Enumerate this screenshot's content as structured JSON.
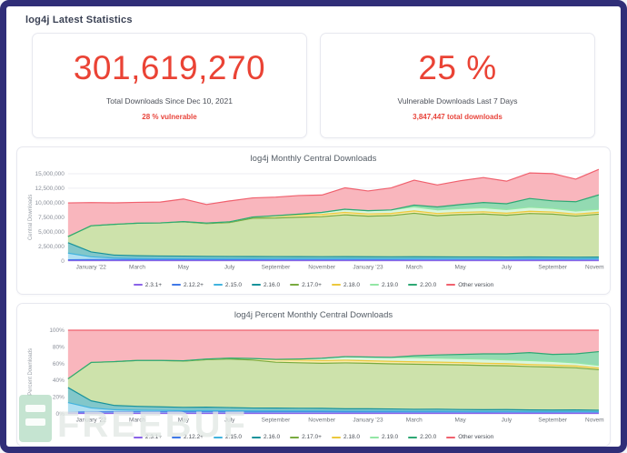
{
  "page": {
    "title": "log4j Latest Statistics"
  },
  "stat_cards": [
    {
      "value": "301,619,270",
      "label": "Total Downloads Since Dec 10, 2021",
      "sublabel": "28 % vulnerable"
    },
    {
      "value": "25 %",
      "label": "Vulnerable Downloads Last 7 Days",
      "sublabel": "3,847,447 total downloads"
    }
  ],
  "colors": {
    "accent_red": "#ea4335",
    "frame_navy": "#302e78"
  },
  "watermark": {
    "text": "FREEBUF"
  },
  "chart_data": [
    {
      "type": "area",
      "stacked": true,
      "grid": true,
      "legend_position": "bottom",
      "title": "log4j Monthly Central Downloads",
      "xlabel": "",
      "ylabel": "Central Downloads",
      "ylim": [
        0,
        15000000
      ],
      "y_ticks": [
        {
          "v": 0,
          "label": "0"
        },
        {
          "v": 2500000,
          "label": "2,500,000"
        },
        {
          "v": 5000000,
          "label": "5,000,000"
        },
        {
          "v": 7500000,
          "label": "7,500,000"
        },
        {
          "v": 10000000,
          "label": "10,000,000"
        },
        {
          "v": 12500000,
          "label": "12,500,000"
        },
        {
          "v": 15000000,
          "label": "15,000,000"
        }
      ],
      "x": [
        "December '21",
        "January '22",
        "February",
        "March",
        "April",
        "May",
        "June",
        "July",
        "August",
        "September",
        "October",
        "November",
        "December '22",
        "January '23",
        "February",
        "March",
        "April",
        "May",
        "June",
        "July",
        "August",
        "September",
        "October",
        "November"
      ],
      "x_tick_indices": [
        1,
        3,
        5,
        7,
        9,
        11,
        13,
        15,
        17,
        19,
        21,
        23
      ],
      "series": [
        {
          "name": "2.3.1+",
          "color": "#8a63e8",
          "fill": "#dcd0f8",
          "values": [
            20000,
            20000,
            20000,
            20000,
            20000,
            20000,
            20000,
            20000,
            20000,
            20000,
            20000,
            20000,
            20000,
            20000,
            20000,
            20000,
            20000,
            20000,
            20000,
            20000,
            20000,
            20000,
            20000,
            20000
          ]
        },
        {
          "name": "2.12.2+",
          "color": "#4079e8",
          "fill": "#a9c3f2",
          "values": [
            150000,
            180000,
            190000,
            200000,
            200000,
            200000,
            200000,
            200000,
            200000,
            210000,
            210000,
            210000,
            220000,
            220000,
            220000,
            230000,
            230000,
            230000,
            230000,
            230000,
            240000,
            240000,
            240000,
            250000
          ]
        },
        {
          "name": "2.15.0",
          "color": "#41b3de",
          "fill": "#b0e0f2",
          "values": [
            1150000,
            480000,
            250000,
            180000,
            160000,
            150000,
            140000,
            130000,
            130000,
            120000,
            120000,
            120000,
            120000,
            110000,
            110000,
            110000,
            100000,
            100000,
            100000,
            90000,
            90000,
            90000,
            80000,
            80000
          ]
        },
        {
          "name": "2.16.0",
          "color": "#17929b",
          "fill": "#82c7ca",
          "values": [
            1800000,
            850000,
            520000,
            470000,
            440000,
            430000,
            400000,
            390000,
            380000,
            370000,
            360000,
            350000,
            350000,
            340000,
            330000,
            330000,
            320000,
            310000,
            310000,
            300000,
            300000,
            290000,
            280000,
            280000
          ]
        },
        {
          "name": "2.17.0+",
          "color": "#79aa3f",
          "fill": "#cde2ab",
          "values": [
            1050000,
            4500000,
            5300000,
            5600000,
            5700000,
            5900000,
            5650000,
            5850000,
            6600000,
            6650000,
            6800000,
            6900000,
            7200000,
            7000000,
            7100000,
            7500000,
            7100000,
            7300000,
            7400000,
            7200000,
            7500000,
            7400000,
            7100000,
            7400000
          ]
        },
        {
          "name": "2.18.0",
          "color": "#ecc83d",
          "fill": "#fbecab",
          "values": [
            0,
            0,
            0,
            0,
            0,
            50000,
            80000,
            120000,
            200000,
            350000,
            380000,
            380000,
            420000,
            380000,
            380000,
            400000,
            380000,
            380000,
            380000,
            360000,
            380000,
            360000,
            330000,
            320000
          ]
        },
        {
          "name": "2.19.0",
          "color": "#93e6a5",
          "fill": "#d9f6de",
          "values": [
            0,
            0,
            0,
            0,
            0,
            0,
            0,
            0,
            0,
            50000,
            150000,
            350000,
            550000,
            560000,
            600000,
            700000,
            620000,
            650000,
            700000,
            620000,
            700000,
            620000,
            520000,
            500000
          ]
        },
        {
          "name": "2.20.0",
          "color": "#2ea874",
          "fill": "#93dab2",
          "values": [
            0,
            0,
            0,
            0,
            0,
            0,
            0,
            0,
            0,
            0,
            0,
            0,
            0,
            0,
            0,
            300000,
            500000,
            700000,
            900000,
            1000000,
            1500000,
            1300000,
            1600000,
            2500000
          ]
        },
        {
          "name": "Other version",
          "color": "#f0616e",
          "fill": "#f9b6bd",
          "values": [
            5800000,
            4000000,
            3700000,
            3600000,
            3600000,
            3900000,
            3200000,
            3600000,
            3300000,
            3200000,
            3200000,
            3000000,
            3700000,
            3400000,
            3800000,
            4300000,
            3800000,
            4100000,
            4300000,
            3900000,
            4400000,
            4700000,
            3900000,
            4400000
          ]
        }
      ]
    },
    {
      "type": "area",
      "stacked": "percent",
      "grid": true,
      "legend_position": "bottom",
      "title": "log4j Percent Monthly Central Downloads",
      "xlabel": "",
      "ylabel": "Percent Downloads",
      "ylim": [
        0,
        100
      ],
      "y_ticks": [
        {
          "v": 0,
          "label": "0%"
        },
        {
          "v": 20,
          "label": "20%"
        },
        {
          "v": 40,
          "label": "40%"
        },
        {
          "v": 60,
          "label": "60%"
        },
        {
          "v": 80,
          "label": "80%"
        },
        {
          "v": 100,
          "label": "100%"
        }
      ],
      "x": [
        "December '21",
        "January '22",
        "February",
        "March",
        "April",
        "May",
        "June",
        "July",
        "August",
        "September",
        "October",
        "November",
        "December '22",
        "January '23",
        "February",
        "March",
        "April",
        "May",
        "June",
        "July",
        "August",
        "September",
        "October",
        "November"
      ],
      "x_tick_indices": [
        1,
        3,
        5,
        7,
        9,
        11,
        13,
        15,
        17,
        19,
        21,
        23
      ],
      "series": [
        {
          "name": "2.3.1+",
          "color": "#8a63e8",
          "fill": "#dcd0f8",
          "values": [
            0.2,
            0.2,
            0.2,
            0.2,
            0.2,
            0.2,
            0.2,
            0.2,
            0.2,
            0.2,
            0.2,
            0.2,
            0.2,
            0.2,
            0.2,
            0.2,
            0.2,
            0.2,
            0.2,
            0.2,
            0.2,
            0.2,
            0.2,
            0.2
          ]
        },
        {
          "name": "2.12.2+",
          "color": "#4079e8",
          "fill": "#a9c3f2",
          "values": [
            1.5,
            1.8,
            1.9,
            2.0,
            2.0,
            1.9,
            2.0,
            1.9,
            1.8,
            1.9,
            1.9,
            1.9,
            1.8,
            1.8,
            1.8,
            1.7,
            1.8,
            1.7,
            1.6,
            1.7,
            1.6,
            1.6,
            1.7,
            1.6
          ]
        },
        {
          "name": "2.15.0",
          "color": "#41b3de",
          "fill": "#b0e0f2",
          "values": [
            11.5,
            4.8,
            2.5,
            1.8,
            1.6,
            1.4,
            1.4,
            1.3,
            1.2,
            1.1,
            1.1,
            1.1,
            1.0,
            0.9,
            0.9,
            0.8,
            0.8,
            0.7,
            0.7,
            0.7,
            0.6,
            0.6,
            0.6,
            0.5
          ]
        },
        {
          "name": "2.16.0",
          "color": "#17929b",
          "fill": "#82c7ca",
          "values": [
            18.0,
            8.5,
            5.2,
            4.7,
            4.3,
            4.0,
            4.1,
            3.8,
            3.5,
            3.4,
            3.2,
            3.1,
            2.8,
            2.9,
            2.7,
            2.5,
            2.5,
            2.3,
            2.2,
            2.2,
            2.0,
            1.9,
            1.9,
            1.8
          ]
        },
        {
          "name": "2.17.0+",
          "color": "#79aa3f",
          "fill": "#cde2ab",
          "values": [
            10.5,
            46.0,
            52.5,
            55.0,
            55.6,
            55.4,
            57.0,
            58.2,
            57.5,
            55.0,
            54.5,
            54.0,
            55.0,
            54.5,
            54.0,
            54.0,
            53.5,
            53.5,
            53.0,
            52.5,
            52.0,
            51.5,
            50.5,
            48.5
          ]
        },
        {
          "name": "2.18.0",
          "color": "#ecc83d",
          "fill": "#fbecab",
          "values": [
            0,
            0,
            0,
            0,
            0,
            0.4,
            0.7,
            1.1,
            1.8,
            3.0,
            3.3,
            3.2,
            3.2,
            3.0,
            3.0,
            2.9,
            2.9,
            2.8,
            2.7,
            2.6,
            2.5,
            2.4,
            2.3,
            2.0
          ]
        },
        {
          "name": "2.19.0",
          "color": "#93e6a5",
          "fill": "#d9f6de",
          "values": [
            0,
            0,
            0,
            0,
            0,
            0,
            0,
            0,
            0,
            0.4,
            1.2,
            2.8,
            4.2,
            4.5,
            4.8,
            5.0,
            4.8,
            4.7,
            4.9,
            4.5,
            4.7,
            4.2,
            3.6,
            3.2
          ]
        },
        {
          "name": "2.20.0",
          "color": "#2ea874",
          "fill": "#93dab2",
          "values": [
            0,
            0,
            0,
            0,
            0,
            0,
            0,
            0,
            0,
            0,
            0,
            0,
            0,
            0,
            0,
            2.2,
            3.8,
            5.0,
            6.3,
            7.2,
            9.5,
            8.5,
            10.8,
            16.5
          ]
        },
        {
          "name": "Other version",
          "color": "#f0616e",
          "fill": "#f9b6bd",
          "values": [
            58.3,
            38.7,
            37.7,
            36.3,
            36.3,
            36.7,
            34.6,
            33.5,
            34.0,
            35.0,
            34.6,
            33.7,
            31.8,
            32.2,
            32.6,
            30.7,
            29.7,
            29.1,
            28.4,
            28.4,
            26.9,
            29.1,
            28.4,
            25.7
          ]
        }
      ]
    }
  ]
}
